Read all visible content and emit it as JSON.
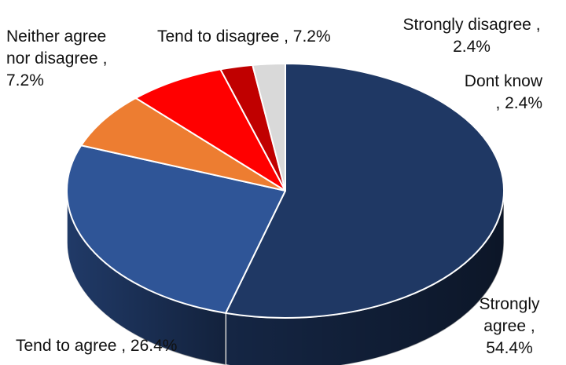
{
  "chart_data": {
    "type": "pie",
    "title": "",
    "style": "3d",
    "slices": [
      {
        "label": "Strongly agree",
        "value": 54.4,
        "color": "#1f3864",
        "label_lines": [
          "Strongly",
          "agree ,",
          "54.4%"
        ]
      },
      {
        "label": "Tend to agree",
        "value": 26.4,
        "color": "#2f5597",
        "label_lines": [
          "Tend to agree , 26.4%"
        ]
      },
      {
        "label": "Neither agree nor disagree",
        "value": 7.2,
        "color": "#ed7d31",
        "label_lines": [
          "Neither agree",
          "nor disagree ,",
          "7.2%"
        ]
      },
      {
        "label": "Tend to disagree",
        "value": 7.2,
        "color": "#ff0000",
        "label_lines": [
          "Tend to disagree , 7.2%"
        ]
      },
      {
        "label": "Strongly disagree",
        "value": 2.4,
        "color": "#c00000",
        "label_lines": [
          "Strongly disagree ,",
          "2.4%"
        ]
      },
      {
        "label": "Dont know",
        "value": 2.4,
        "color": "#d9d9d9",
        "label_lines": [
          "Dont know",
          ", 2.4%"
        ]
      }
    ]
  }
}
